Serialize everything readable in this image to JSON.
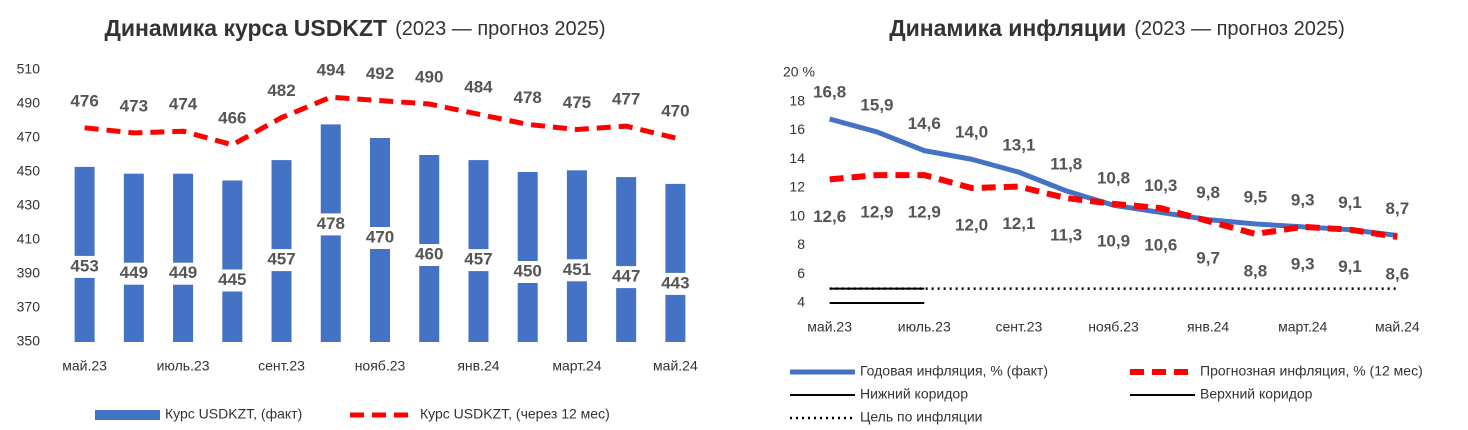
{
  "chart_data": [
    {
      "type": "bar",
      "title": "Динамика курса USDKZT",
      "subtitle": "(2023 — прогноз 2025)",
      "categories": [
        "май.23",
        null,
        "июль.23",
        null,
        "сент.23",
        null,
        "нояб.23",
        null,
        "янв.24",
        null,
        "март.24",
        null,
        "май.24"
      ],
      "series": [
        {
          "name": "Курс USDKZT, (факт)",
          "kind": "bar",
          "color": "#4472c4",
          "values": [
            453,
            449,
            449,
            445,
            457,
            478,
            470,
            460,
            457,
            450,
            451,
            447,
            443
          ]
        },
        {
          "name": "Курс USDKZT, (через 12 мес)",
          "kind": "line",
          "style": "dashed",
          "color": "#ff0000",
          "values": [
            476,
            473,
            474,
            466,
            482,
            494,
            492,
            490,
            484,
            478,
            475,
            477,
            470
          ]
        }
      ],
      "ylim": [
        350,
        510
      ],
      "yticks": [
        350,
        370,
        390,
        410,
        430,
        450,
        470,
        490,
        510
      ],
      "grid": false
    },
    {
      "type": "line",
      "title": "Динамика инфляции",
      "subtitle": "(2023 — прогноз 2025)",
      "categories": [
        "май.23",
        null,
        "июль.23",
        null,
        "сент.23",
        null,
        "нояб.23",
        null,
        "янв.24",
        null,
        "март.24",
        null,
        "май.24"
      ],
      "series": [
        {
          "name": "Годовая инфляция, % (факт)",
          "style": "solid",
          "color": "#4472c4",
          "label_side": "above",
          "values": [
            16.8,
            15.9,
            14.6,
            14.0,
            13.1,
            11.8,
            10.8,
            10.3,
            9.8,
            9.5,
            9.3,
            9.1,
            8.7
          ],
          "value_labels": [
            "16,8",
            "15,9",
            "14,6",
            "14,0",
            "13,1",
            "11,8",
            "10,8",
            "10,3",
            "9,8",
            "9,5",
            "9,3",
            "9,1",
            "8,7"
          ]
        },
        {
          "name": "Прогнозная инфляция, % (12 мес)",
          "style": "dashed",
          "color": "#ff0000",
          "label_side": "below",
          "values": [
            12.6,
            12.9,
            12.9,
            12.0,
            12.1,
            11.3,
            10.9,
            10.6,
            9.7,
            8.8,
            9.3,
            9.1,
            8.6
          ],
          "value_labels": [
            "12,6",
            "12,9",
            "12,9",
            "12,0",
            "12,1",
            "11,3",
            "10,9",
            "10,6",
            "9,7",
            "8,8",
            "9,3",
            "9,1",
            "8,6"
          ]
        },
        {
          "name": "Нижний коридор",
          "style": "thin",
          "color": "#000000",
          "values": [
            4,
            4,
            4,
            null,
            null,
            null,
            null,
            null,
            null,
            null,
            null,
            null,
            null
          ]
        },
        {
          "name": "Верхний коридор",
          "style": "thin",
          "color": "#000000",
          "values": [
            5,
            5,
            5,
            null,
            null,
            null,
            null,
            null,
            null,
            null,
            null,
            null,
            null
          ]
        },
        {
          "name": "Цель по инфляции",
          "style": "dotted",
          "color": "#000000",
          "values": [
            5,
            5,
            5,
            5,
            5,
            5,
            5,
            5,
            5,
            5,
            5,
            5,
            5
          ]
        }
      ],
      "ylim": [
        4,
        20
      ],
      "yticks": [
        4,
        6,
        8,
        10,
        12,
        14,
        16,
        18,
        {
          "value": 20,
          "label": "20 %"
        }
      ],
      "grid": false
    }
  ]
}
